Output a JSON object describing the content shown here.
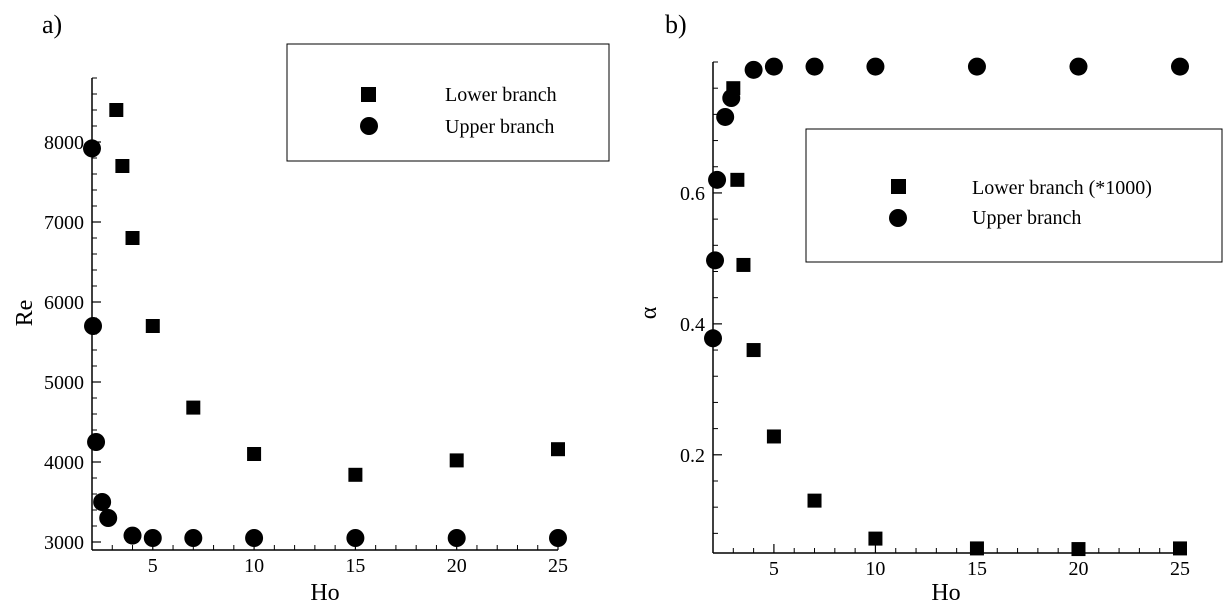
{
  "chart_data": [
    {
      "panel_label": "a)",
      "type": "scatter",
      "xlabel": "Ho",
      "ylabel": "Re",
      "xlim": [
        2,
        25
      ],
      "ylim": [
        2900,
        8800
      ],
      "xticks": [
        5,
        10,
        15,
        20,
        25
      ],
      "yticks": [
        3000,
        4000,
        5000,
        6000,
        7000,
        8000
      ],
      "grid": false,
      "legend_position": "top-right",
      "series": [
        {
          "name": "Lower branch",
          "marker": "square",
          "points": [
            [
              3.2,
              8400
            ],
            [
              3.5,
              7700
            ],
            [
              4,
              6800
            ],
            [
              5,
              5700
            ],
            [
              7,
              4680
            ],
            [
              10,
              4100
            ],
            [
              15,
              3840
            ],
            [
              20,
              4020
            ],
            [
              25,
              4160
            ]
          ]
        },
        {
          "name": "Upper branch",
          "marker": "circle",
          "points": [
            [
              2.0,
              7920
            ],
            [
              2.05,
              5700
            ],
            [
              2.2,
              4250
            ],
            [
              2.5,
              3500
            ],
            [
              2.8,
              3300
            ],
            [
              4,
              3080
            ],
            [
              5,
              3050
            ],
            [
              7,
              3050
            ],
            [
              10,
              3050
            ],
            [
              15,
              3050
            ],
            [
              20,
              3050
            ],
            [
              25,
              3050
            ]
          ]
        }
      ]
    },
    {
      "panel_label": "b)",
      "type": "scatter",
      "xlabel": "Ho",
      "ylabel": "α",
      "xlim": [
        2,
        25
      ],
      "ylim": [
        0.05,
        0.8
      ],
      "xticks": [
        5,
        10,
        15,
        20,
        25
      ],
      "yticks": [
        0.2,
        0.4,
        0.6
      ],
      "grid": false,
      "legend_position": "top-right",
      "series": [
        {
          "name": "Lower branch (*1000)",
          "marker": "square",
          "points": [
            [
              3,
              0.76
            ],
            [
              3.2,
              0.62
            ],
            [
              3.5,
              0.49
            ],
            [
              4,
              0.36
            ],
            [
              5,
              0.228
            ],
            [
              7,
              0.13
            ],
            [
              10,
              0.072
            ],
            [
              15,
              0.057
            ],
            [
              20,
              0.056
            ],
            [
              25,
              0.057
            ]
          ]
        },
        {
          "name": "Upper branch",
          "marker": "circle",
          "points": [
            [
              2.0,
              0.378
            ],
            [
              2.1,
              0.497
            ],
            [
              2.2,
              0.62
            ],
            [
              2.6,
              0.716
            ],
            [
              2.9,
              0.745
            ],
            [
              4,
              0.788
            ],
            [
              5,
              0.793
            ],
            [
              7,
              0.793
            ],
            [
              10,
              0.793
            ],
            [
              15,
              0.793
            ],
            [
              20,
              0.793
            ],
            [
              25,
              0.793
            ]
          ]
        }
      ]
    }
  ]
}
